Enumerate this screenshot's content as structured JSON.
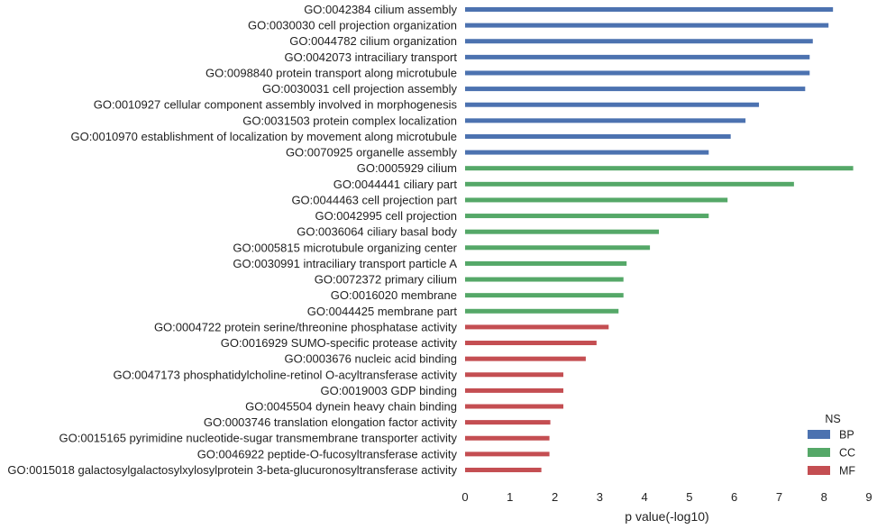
{
  "chart_data": {
    "type": "bar",
    "orientation": "horizontal",
    "xlabel": "p value(-log10)",
    "xlim": [
      0,
      9
    ],
    "xticks": [
      0,
      1,
      2,
      3,
      4,
      5,
      6,
      7,
      8,
      9
    ],
    "grid": false,
    "legend": {
      "title": "NS",
      "placement": "bottom-right",
      "entries": [
        {
          "name": "BP",
          "color": "#4c72b0"
        },
        {
          "name": "CC",
          "color": "#55a868"
        },
        {
          "name": "MF",
          "color": "#c44e52"
        }
      ]
    },
    "bars": [
      {
        "label": "GO:0042384 cilium assembly",
        "value": 8.2,
        "ns": "BP"
      },
      {
        "label": "GO:0030030 cell projection organization",
        "value": 8.1,
        "ns": "BP"
      },
      {
        "label": "GO:0044782 cilium organization",
        "value": 7.75,
        "ns": "BP"
      },
      {
        "label": "GO:0042073 intraciliary transport",
        "value": 7.68,
        "ns": "BP"
      },
      {
        "label": "GO:0098840 protein transport along microtubule",
        "value": 7.68,
        "ns": "BP"
      },
      {
        "label": "GO:0030031 cell projection assembly",
        "value": 7.58,
        "ns": "BP"
      },
      {
        "label": "GO:0010927 cellular component assembly involved in morphogenesis",
        "value": 6.55,
        "ns": "BP"
      },
      {
        "label": "GO:0031503 protein complex localization",
        "value": 6.25,
        "ns": "BP"
      },
      {
        "label": "GO:0010970 establishment of localization by movement along microtubule",
        "value": 5.92,
        "ns": "BP"
      },
      {
        "label": "GO:0070925 organelle assembly",
        "value": 5.43,
        "ns": "BP"
      },
      {
        "label": "GO:0005929 cilium",
        "value": 8.65,
        "ns": "CC"
      },
      {
        "label": "GO:0044441 ciliary part",
        "value": 7.33,
        "ns": "CC"
      },
      {
        "label": "GO:0044463 cell projection part",
        "value": 5.85,
        "ns": "CC"
      },
      {
        "label": "GO:0042995 cell projection",
        "value": 5.43,
        "ns": "CC"
      },
      {
        "label": "GO:0036064 ciliary basal body",
        "value": 4.32,
        "ns": "CC"
      },
      {
        "label": "GO:0005815 microtubule organizing center",
        "value": 4.12,
        "ns": "CC"
      },
      {
        "label": "GO:0030991 intraciliary transport particle A",
        "value": 3.6,
        "ns": "CC"
      },
      {
        "label": "GO:0072372 primary cilium",
        "value": 3.53,
        "ns": "CC"
      },
      {
        "label": "GO:0016020 membrane",
        "value": 3.53,
        "ns": "CC"
      },
      {
        "label": "GO:0044425 membrane part",
        "value": 3.42,
        "ns": "CC"
      },
      {
        "label": "GO:0004722 protein serine/threonine phosphatase activity",
        "value": 3.2,
        "ns": "MF"
      },
      {
        "label": "GO:0016929 SUMO-specific protease activity",
        "value": 2.93,
        "ns": "MF"
      },
      {
        "label": "GO:0003676 nucleic acid binding",
        "value": 2.69,
        "ns": "MF"
      },
      {
        "label": "GO:0047173 phosphatidylcholine-retinol O-acyltransferase activity",
        "value": 2.19,
        "ns": "MF"
      },
      {
        "label": "GO:0019003 GDP binding",
        "value": 2.19,
        "ns": "MF"
      },
      {
        "label": "GO:0045504 dynein heavy chain binding",
        "value": 2.19,
        "ns": "MF"
      },
      {
        "label": "GO:0003746 translation elongation factor activity",
        "value": 1.9,
        "ns": "MF"
      },
      {
        "label": "GO:0015165 pyrimidine nucleotide-sugar transmembrane transporter activity",
        "value": 1.88,
        "ns": "MF"
      },
      {
        "label": "GO:0046922 peptide-O-fucosyltransferase activity",
        "value": 1.88,
        "ns": "MF"
      },
      {
        "label": "GO:0015018 galactosylgalactosylxylosylprotein 3-beta-glucuronosyltransferase activity",
        "value": 1.7,
        "ns": "MF"
      }
    ]
  }
}
